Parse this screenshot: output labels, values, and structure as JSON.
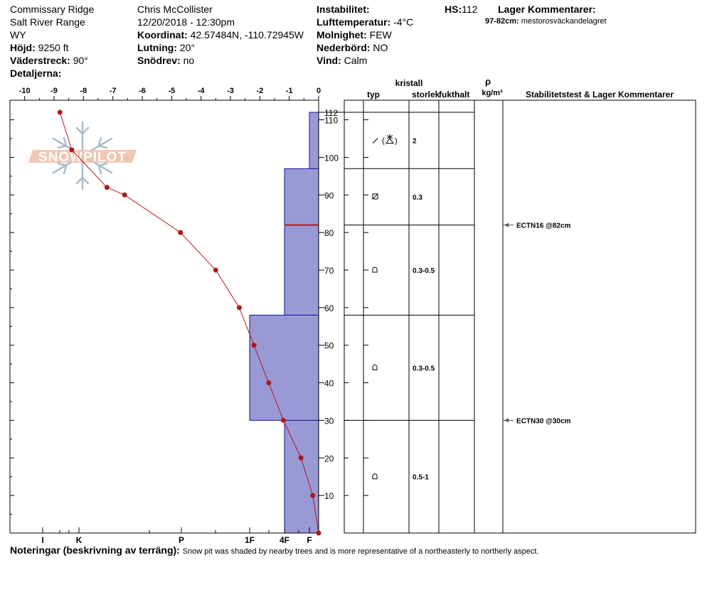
{
  "header": {
    "location": "Commissary Ridge",
    "range": "Salt River Range",
    "state": "WY",
    "elevation_label": "Höjd:",
    "elevation": "9250 ft",
    "aspect_label": "Väderstreck:",
    "aspect": "90°",
    "details_label": "Detaljerna:",
    "observer": "Chris McCollister",
    "datetime": "12/20/2018 - 12:30pm",
    "coord_label": "Koordinat:",
    "coord": "42.57484N, -110.72945W",
    "slope_label": "Lutning:",
    "slope": "20°",
    "blowing_label": "Snödrev:",
    "blowing": "no",
    "instability_label": "Instabilitet:",
    "airtemp_label": "Lufttemperatur:",
    "airtemp": "-4°C",
    "sky_label": "Molnighet:",
    "sky": "FEW",
    "precip_label": "Nederbörd:",
    "precip": "NO",
    "wind_label": "Vind:",
    "wind": "Calm",
    "hs_label": "HS:",
    "hs": "112",
    "layer_comments_label": "Lager Kommentarer:",
    "layer_comment_range": "97-82cm:",
    "layer_comment_text": "mestorosväckandelagret"
  },
  "logo_text": "SNOWPILOT",
  "notes": {
    "label": "Noteringar (beskrivning av terräng):",
    "text": "Snow pit was shaded by nearby trees and is more representative of a northeasterly to northerly aspect."
  },
  "columns": {
    "crystal": "kristall",
    "type": "typ",
    "size": "storlek",
    "moisture": "fukthalt",
    "rho": "ρ",
    "density_unit": "kg/m³",
    "stability": "Stabilitetstest & Lager Kommentarer"
  },
  "chart_data": {
    "type": "snow_profile",
    "temperature_axis": {
      "ticks": [
        -10,
        -9,
        -8,
        -7,
        -6,
        -5,
        -4,
        -3,
        -2,
        -1,
        0
      ],
      "range": [
        -10.5,
        0
      ]
    },
    "height_axis": {
      "ticks": [
        10,
        20,
        30,
        40,
        50,
        60,
        70,
        80,
        90,
        100,
        110
      ],
      "hs_label": "112",
      "range": [
        0,
        112
      ]
    },
    "hardness_ticks": [
      "I",
      "K",
      "P",
      "1F",
      "4F",
      "F"
    ],
    "temperature_profile": [
      {
        "t": -8.8,
        "h": 112
      },
      {
        "t": -8.4,
        "h": 102
      },
      {
        "t": -7.2,
        "h": 92
      },
      {
        "t": -6.6,
        "h": 90
      },
      {
        "t": -4.7,
        "h": 80
      },
      {
        "t": -3.5,
        "h": 70
      },
      {
        "t": -2.7,
        "h": 60
      },
      {
        "t": -2.2,
        "h": 50
      },
      {
        "t": -1.7,
        "h": 40
      },
      {
        "t": -1.2,
        "h": 30
      },
      {
        "t": -0.6,
        "h": 20
      },
      {
        "t": -0.2,
        "h": 10
      },
      {
        "t": 0,
        "h": 0
      }
    ],
    "hardness_layers": [
      {
        "bottom": 97,
        "top": 112,
        "hardness": "F"
      },
      {
        "bottom": 58,
        "top": 97,
        "hardness": "4F"
      },
      {
        "bottom": 30,
        "top": 58,
        "hardness": "1F"
      },
      {
        "bottom": 0,
        "top": 30,
        "hardness": "4F"
      }
    ],
    "weak_layer": 82,
    "layers": [
      {
        "bottom": 97,
        "top": 112,
        "type": "DF/PP",
        "size": "2"
      },
      {
        "bottom": 82,
        "top": 97,
        "type": "FC",
        "size": "0.3"
      },
      {
        "bottom": 58,
        "top": 82,
        "type": "RG",
        "size": "0.3-0.5"
      },
      {
        "bottom": 30,
        "top": 58,
        "type": "RG",
        "size": "0.3-0.5"
      },
      {
        "bottom": 0,
        "top": 30,
        "type": "RG",
        "size": "0.5-1"
      }
    ],
    "stability_tests": [
      {
        "h": 82,
        "label": "ECTN16 @82cm"
      },
      {
        "h": 30,
        "label": "ECTN30 @30cm"
      }
    ]
  }
}
